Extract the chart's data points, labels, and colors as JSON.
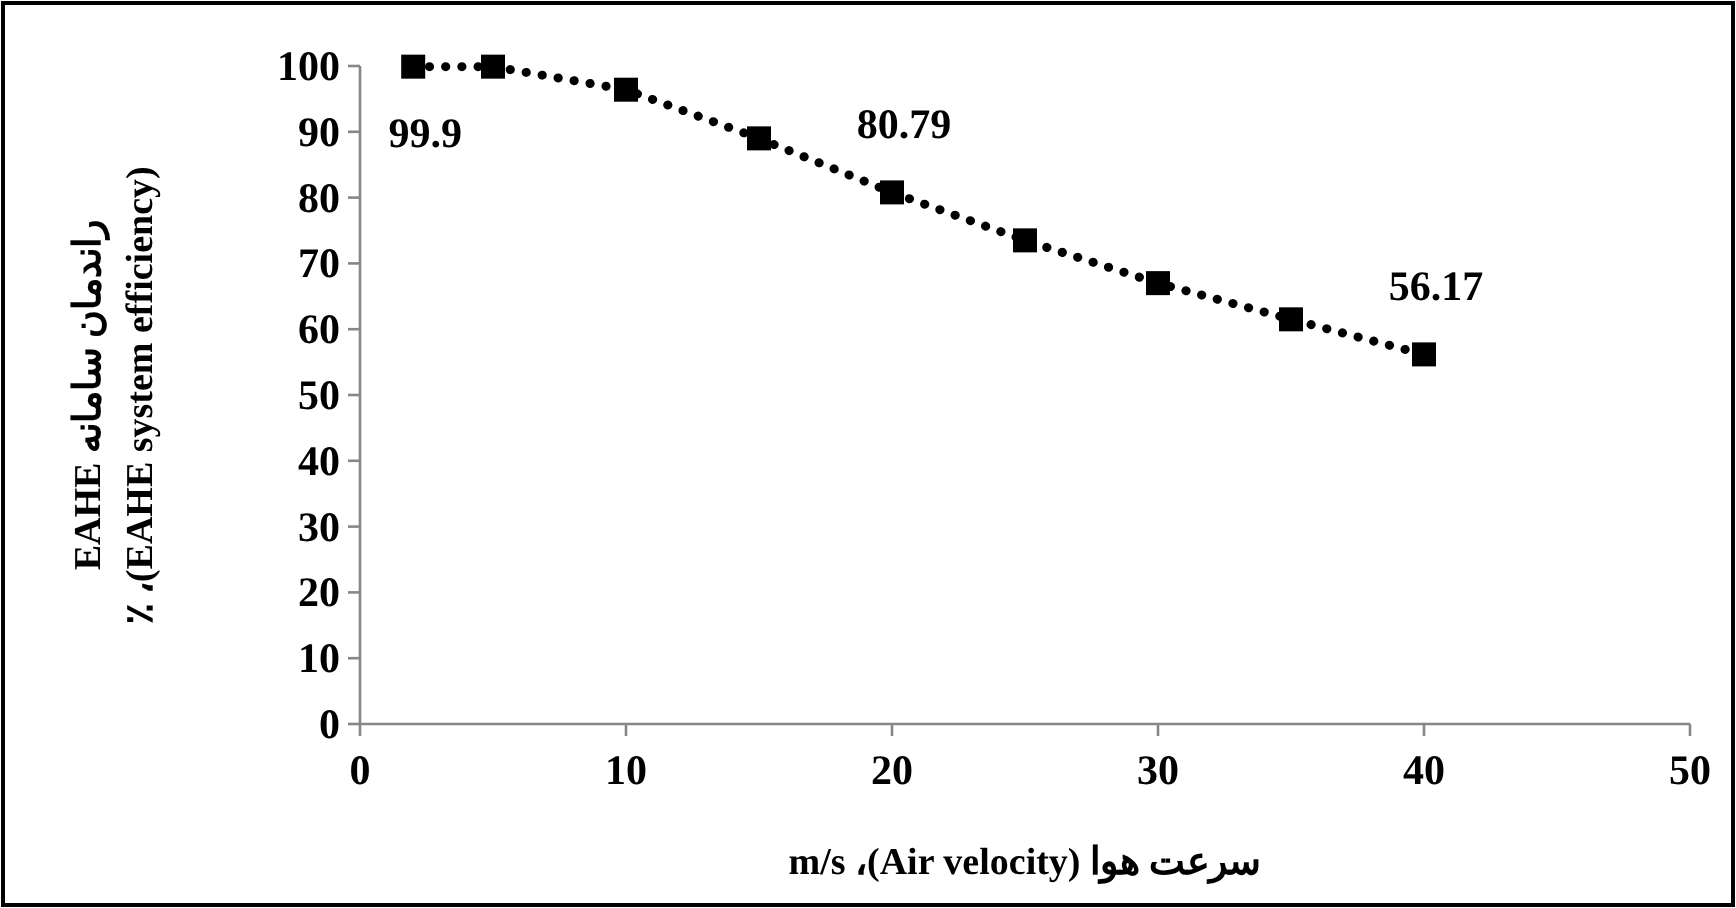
{
  "chart_data": {
    "type": "line",
    "xlabel": "سرعت هوا (Air velocity)، m/s",
    "ylabel": "راندمان سامانه EAHE\n(EAHE system efficiency)، ٪",
    "x": [
      2,
      5,
      10,
      15,
      20,
      25,
      30,
      35,
      40
    ],
    "series": [
      {
        "color": "#000000",
        "values": [
          99.9,
          99.9,
          96.4,
          89,
          80.79,
          73.5,
          67,
          61.5,
          56.17
        ],
        "value_labels": [
          "99.9",
          null,
          null,
          null,
          "80.79",
          null,
          null,
          null,
          "56.17"
        ]
      }
    ],
    "xlim": [
      0,
      50
    ],
    "xticks": [
      0,
      10,
      20,
      30,
      40,
      50
    ],
    "ylim": [
      0,
      100
    ],
    "yticks": [
      0,
      10,
      20,
      30,
      40,
      50,
      60,
      70,
      80,
      90,
      100
    ],
    "marker": "square",
    "line_style": "dotted",
    "grid": false
  }
}
